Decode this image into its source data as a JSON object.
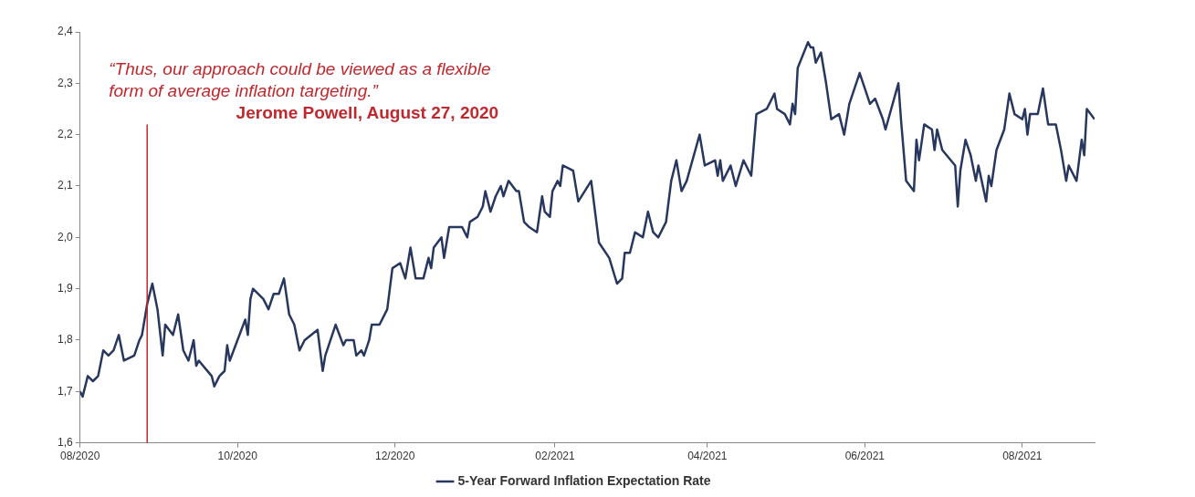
{
  "chart_data": {
    "type": "line",
    "annotations": [
      "“Thus, our approach could be viewed as a flexible form of average inflation targeting.”",
      "Jerome Powell, August 27, 2020"
    ],
    "xlim": [
      "2020-08-01",
      "2021-08-29"
    ],
    "xticks": [
      {
        "value": "2020-08-01",
        "label": "08/2020"
      },
      {
        "value": "2020-10-01",
        "label": "10/2020"
      },
      {
        "value": "2020-12-01",
        "label": "12/2020"
      },
      {
        "value": "2021-02-01",
        "label": "02/2021"
      },
      {
        "value": "2021-04-01",
        "label": "04/2021"
      },
      {
        "value": "2021-06-01",
        "label": "06/2021"
      },
      {
        "value": "2021-08-01",
        "label": "08/2021"
      }
    ],
    "ylim": [
      1.6,
      2.4
    ],
    "yticks": [
      {
        "value": 1.6,
        "label": "1,6"
      },
      {
        "value": 1.7,
        "label": "1,7"
      },
      {
        "value": 1.8,
        "label": "1,8"
      },
      {
        "value": 1.9,
        "label": "1,9"
      },
      {
        "value": 2.0,
        "label": "2,0"
      },
      {
        "value": 2.1,
        "label": "2,1"
      },
      {
        "value": 2.2,
        "label": "2,2"
      },
      {
        "value": 2.3,
        "label": "2,3"
      },
      {
        "value": 2.4,
        "label": "2,4"
      }
    ],
    "grid": false,
    "legend": "bottom",
    "marker": "none",
    "line_style": "solid",
    "ref_lines": [
      {
        "axis": "x",
        "value": "2020-08-27",
        "color": "#c0282d"
      }
    ],
    "series": [
      {
        "name": "5-Year Forward Inflation Expectation Rate",
        "color": "#27375e",
        "x": [
          "2020-08-01",
          "2020-08-02",
          "2020-08-04",
          "2020-08-06",
          "2020-08-08",
          "2020-08-10",
          "2020-08-12",
          "2020-08-14",
          "2020-08-16",
          "2020-08-18",
          "2020-08-22",
          "2020-08-24",
          "2020-08-25",
          "2020-08-27",
          "2020-08-29",
          "2020-08-31",
          "2020-09-02",
          "2020-09-03",
          "2020-09-06",
          "2020-09-08",
          "2020-09-10",
          "2020-09-12",
          "2020-09-14",
          "2020-09-15",
          "2020-09-16",
          "2020-09-21",
          "2020-09-22",
          "2020-09-24",
          "2020-09-26",
          "2020-09-27",
          "2020-09-28",
          "2020-10-04",
          "2020-10-05",
          "2020-10-06",
          "2020-10-07",
          "2020-10-11",
          "2020-10-13",
          "2020-10-15",
          "2020-10-17",
          "2020-10-19",
          "2020-10-21",
          "2020-10-23",
          "2020-10-25",
          "2020-10-27",
          "2020-11-01",
          "2020-11-03",
          "2020-11-04",
          "2020-11-08",
          "2020-11-11",
          "2020-11-12",
          "2020-11-15",
          "2020-11-16",
          "2020-11-18",
          "2020-11-19",
          "2020-11-21",
          "2020-11-22",
          "2020-11-25",
          "2020-11-28",
          "2020-11-30",
          "2020-12-03",
          "2020-12-05",
          "2020-12-07",
          "2020-12-09",
          "2020-12-12",
          "2020-12-14",
          "2020-12-15",
          "2020-12-16",
          "2020-12-19",
          "2020-12-20",
          "2020-12-22",
          "2020-12-25",
          "2020-12-27",
          "2020-12-29",
          "2020-12-30",
          "2021-01-02",
          "2021-01-04",
          "2021-01-05",
          "2021-01-07",
          "2021-01-09",
          "2021-01-11",
          "2021-01-12",
          "2021-01-14",
          "2021-01-17",
          "2021-01-18",
          "2021-01-20",
          "2021-01-22",
          "2021-01-25",
          "2021-01-27",
          "2021-01-28",
          "2021-01-30",
          "2021-01-31",
          "2021-02-02",
          "2021-02-03",
          "2021-02-04",
          "2021-02-08",
          "2021-02-10",
          "2021-02-15",
          "2021-02-18",
          "2021-02-22",
          "2021-02-25",
          "2021-02-27",
          "2021-02-28",
          "2021-03-02",
          "2021-03-04",
          "2021-03-07",
          "2021-03-09",
          "2021-03-11",
          "2021-03-13",
          "2021-03-16",
          "2021-03-18",
          "2021-03-20",
          "2021-03-22",
          "2021-03-24",
          "2021-03-29",
          "2021-03-31",
          "2021-04-04",
          "2021-04-05",
          "2021-04-06",
          "2021-04-07",
          "2021-04-10",
          "2021-04-12",
          "2021-04-15",
          "2021-04-18",
          "2021-04-20",
          "2021-04-24",
          "2021-04-27",
          "2021-04-28",
          "2021-05-01",
          "2021-05-03",
          "2021-05-04",
          "2021-05-05",
          "2021-05-06",
          "2021-05-10",
          "2021-05-11",
          "2021-05-12",
          "2021-05-13",
          "2021-05-15",
          "2021-05-17",
          "2021-05-19",
          "2021-05-22",
          "2021-05-24",
          "2021-05-26",
          "2021-05-30",
          "2021-06-03",
          "2021-06-05",
          "2021-06-08",
          "2021-06-09",
          "2021-06-14",
          "2021-06-15",
          "2021-06-17",
          "2021-06-20",
          "2021-06-21",
          "2021-06-22",
          "2021-06-24",
          "2021-06-27",
          "2021-06-28",
          "2021-06-29",
          "2021-07-01",
          "2021-07-06",
          "2021-07-07",
          "2021-07-08",
          "2021-07-10",
          "2021-07-12",
          "2021-07-14",
          "2021-07-15",
          "2021-07-18",
          "2021-07-19",
          "2021-07-20",
          "2021-07-22",
          "2021-07-25",
          "2021-07-27",
          "2021-07-29",
          "2021-08-01",
          "2021-08-02",
          "2021-08-03",
          "2021-08-04",
          "2021-08-07",
          "2021-08-09",
          "2021-08-11",
          "2021-08-14",
          "2021-08-16",
          "2021-08-18",
          "2021-08-19",
          "2021-08-22",
          "2021-08-24",
          "2021-08-25",
          "2021-08-26",
          "2021-08-29"
        ],
        "values": [
          1.7,
          1.69,
          1.73,
          1.72,
          1.73,
          1.78,
          1.77,
          1.78,
          1.81,
          1.76,
          1.77,
          1.8,
          1.81,
          1.87,
          1.91,
          1.86,
          1.77,
          1.83,
          1.81,
          1.85,
          1.78,
          1.76,
          1.8,
          1.75,
          1.76,
          1.73,
          1.71,
          1.73,
          1.74,
          1.79,
          1.76,
          1.84,
          1.81,
          1.88,
          1.9,
          1.88,
          1.86,
          1.89,
          1.89,
          1.92,
          1.85,
          1.83,
          1.78,
          1.8,
          1.82,
          1.74,
          1.77,
          1.83,
          1.79,
          1.8,
          1.8,
          1.77,
          1.78,
          1.77,
          1.8,
          1.83,
          1.83,
          1.86,
          1.94,
          1.95,
          1.92,
          1.98,
          1.92,
          1.92,
          1.96,
          1.94,
          1.98,
          2.0,
          1.96,
          2.02,
          2.02,
          2.02,
          2.0,
          2.03,
          2.04,
          2.06,
          2.09,
          2.05,
          2.08,
          2.1,
          2.08,
          2.11,
          2.09,
          2.09,
          2.03,
          2.02,
          2.01,
          2.08,
          2.05,
          2.04,
          2.09,
          2.11,
          2.1,
          2.14,
          2.13,
          2.07,
          2.11,
          1.99,
          1.96,
          1.91,
          1.92,
          1.97,
          1.97,
          2.01,
          2.0,
          2.05,
          2.01,
          2.0,
          2.03,
          2.11,
          2.15,
          2.09,
          2.11,
          2.2,
          2.14,
          2.15,
          2.12,
          2.15,
          2.11,
          2.14,
          2.1,
          2.15,
          2.12,
          2.24,
          2.25,
          2.28,
          2.25,
          2.24,
          2.22,
          2.26,
          2.24,
          2.33,
          2.38,
          2.37,
          2.37,
          2.34,
          2.36,
          2.3,
          2.23,
          2.24,
          2.2,
          2.26,
          2.32,
          2.26,
          2.27,
          2.23,
          2.21,
          2.3,
          2.23,
          2.11,
          2.09,
          2.19,
          2.15,
          2.22,
          2.21,
          2.17,
          2.21,
          2.17,
          2.14,
          2.06,
          2.13,
          2.19,
          2.16,
          2.11,
          2.14,
          2.07,
          2.12,
          2.1,
          2.17,
          2.21,
          2.28,
          2.24,
          2.23,
          2.25,
          2.2,
          2.24,
          2.24,
          2.29,
          2.22,
          2.22,
          2.17,
          2.11,
          2.14,
          2.11,
          2.19,
          2.16,
          2.25,
          2.23
        ]
      }
    ]
  }
}
